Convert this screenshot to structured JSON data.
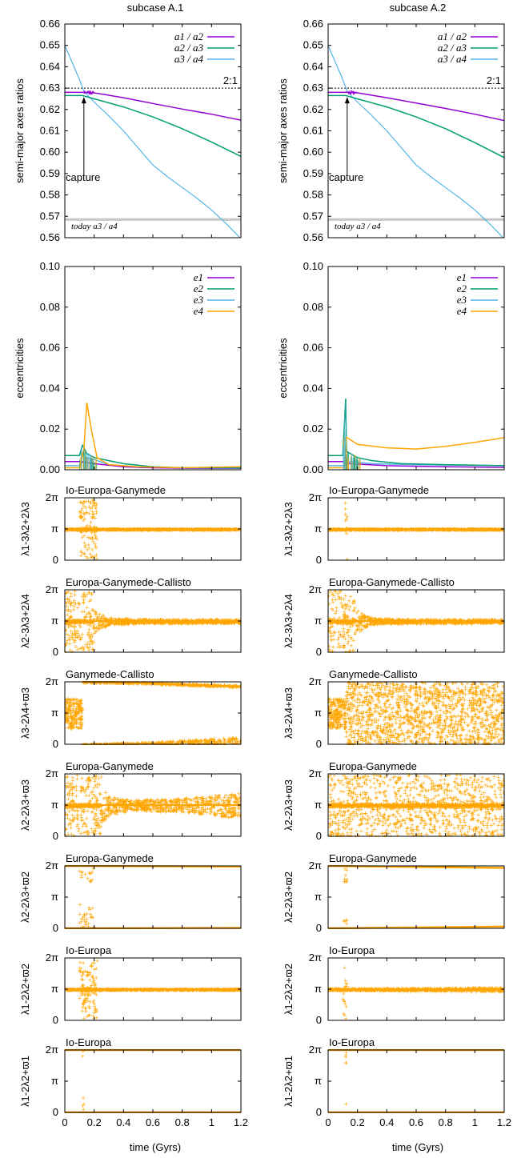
{
  "chart_data": {
    "type": "line",
    "columns": [
      "subcase A.1",
      "subcase A.2"
    ],
    "xlabel": "time (Gyrs)",
    "xlim": [
      0,
      1.2
    ],
    "xticks": [
      "0",
      "0.2",
      "0.4",
      "0.6",
      "0.8",
      "1",
      "1.2"
    ],
    "colors": {
      "purple": "#9400d3",
      "green": "#009e73",
      "blue": "#56b4e9",
      "orange": "#ffa500",
      "gray": "#c8c8c8"
    },
    "semimajor": {
      "ylabel": "semi-major axes ratios",
      "ylim": [
        0.56,
        0.66
      ],
      "yticks": [
        "0.56",
        "0.57",
        "0.58",
        "0.59",
        "0.60",
        "0.61",
        "0.62",
        "0.63",
        "0.64",
        "0.65",
        "0.66"
      ],
      "legend": [
        "a1 / a2",
        "a2 / a3",
        "a3 / a4"
      ],
      "resonance_label": "2:1",
      "resonance_value": 0.63,
      "capture_label": "capture",
      "today_label": "today a3 / a4",
      "today_value": 0.5685,
      "series": [
        {
          "a1_a2": [
            [
              0,
              0.628
            ],
            [
              0.12,
              0.628
            ],
            [
              0.2,
              0.6278
            ],
            [
              0.4,
              0.6255
            ],
            [
              0.6,
              0.6228
            ],
            [
              0.8,
              0.6202
            ],
            [
              1.0,
              0.6178
            ],
            [
              1.2,
              0.615
            ]
          ],
          "a2_a3": [
            [
              0,
              0.6265
            ],
            [
              0.12,
              0.6265
            ],
            [
              0.2,
              0.625
            ],
            [
              0.4,
              0.6212
            ],
            [
              0.6,
              0.6165
            ],
            [
              0.8,
              0.611
            ],
            [
              1.0,
              0.6048
            ],
            [
              1.2,
              0.598
            ]
          ],
          "a3_a4": [
            [
              0,
              0.65
            ],
            [
              0.05,
              0.642
            ],
            [
              0.1,
              0.634
            ],
            [
              0.13,
              0.6285
            ],
            [
              0.2,
              0.6235
            ],
            [
              0.3,
              0.617
            ],
            [
              0.4,
              0.61
            ],
            [
              0.5,
              0.602
            ],
            [
              0.6,
              0.594
            ],
            [
              0.7,
              0.5885
            ],
            [
              0.8,
              0.5835
            ],
            [
              0.9,
              0.5785
            ],
            [
              1.0,
              0.573
            ],
            [
              1.1,
              0.5665
            ],
            [
              1.2,
              0.5595
            ]
          ]
        },
        {
          "a1_a2": [
            [
              0,
              0.628
            ],
            [
              0.12,
              0.628
            ],
            [
              0.2,
              0.6278
            ],
            [
              0.4,
              0.6255
            ],
            [
              0.6,
              0.623
            ],
            [
              0.8,
              0.6205
            ],
            [
              1.0,
              0.6178
            ],
            [
              1.2,
              0.6148
            ]
          ],
          "a2_a3": [
            [
              0,
              0.6265
            ],
            [
              0.12,
              0.6265
            ],
            [
              0.2,
              0.625
            ],
            [
              0.4,
              0.6212
            ],
            [
              0.6,
              0.6165
            ],
            [
              0.8,
              0.611
            ],
            [
              1.0,
              0.6045
            ],
            [
              1.2,
              0.5975
            ]
          ],
          "a3_a4": [
            [
              0,
              0.65
            ],
            [
              0.05,
              0.642
            ],
            [
              0.1,
              0.634
            ],
            [
              0.13,
              0.6285
            ],
            [
              0.2,
              0.6235
            ],
            [
              0.3,
              0.617
            ],
            [
              0.4,
              0.61
            ],
            [
              0.5,
              0.602
            ],
            [
              0.6,
              0.594
            ],
            [
              0.7,
              0.5885
            ],
            [
              0.8,
              0.5835
            ],
            [
              0.9,
              0.5785
            ],
            [
              1.0,
              0.573
            ],
            [
              1.1,
              0.5665
            ],
            [
              1.2,
              0.5595
            ]
          ]
        }
      ]
    },
    "eccentricity": {
      "ylabel": "eccentricities",
      "ylim": [
        0,
        0.1
      ],
      "yticks": [
        "0.00",
        "0.02",
        "0.04",
        "0.06",
        "0.08",
        "0.10"
      ],
      "legend": [
        "e1",
        "e2",
        "e3",
        "e4"
      ],
      "series": [
        {
          "e1": [
            [
              0,
              0.004
            ],
            [
              0.1,
              0.004
            ],
            [
              0.2,
              0.003
            ],
            [
              0.4,
              0.0015
            ],
            [
              0.6,
              0.001
            ],
            [
              0.8,
              0.0008
            ],
            [
              1.0,
              0.0008
            ],
            [
              1.2,
              0.0008
            ]
          ],
          "e2": [
            [
              0,
              0.007
            ],
            [
              0.1,
              0.007
            ],
            [
              0.12,
              0.012
            ],
            [
              0.15,
              0.008
            ],
            [
              0.2,
              0.006
            ],
            [
              0.3,
              0.0045
            ],
            [
              0.4,
              0.003
            ],
            [
              0.6,
              0.0015
            ],
            [
              0.8,
              0.001
            ],
            [
              1.0,
              0.001
            ],
            [
              1.2,
              0.001
            ]
          ],
          "e3": [
            [
              0,
              0.002
            ],
            [
              0.1,
              0.002
            ],
            [
              0.15,
              0.006
            ],
            [
              0.2,
              0.005
            ],
            [
              0.3,
              0.0025
            ],
            [
              0.5,
              0.0012
            ],
            [
              0.8,
              0.0008
            ],
            [
              1.2,
              0.0008
            ]
          ],
          "e4": [
            [
              0,
              0.001
            ],
            [
              0.1,
              0.001
            ],
            [
              0.13,
              0.01
            ],
            [
              0.15,
              0.033
            ],
            [
              0.18,
              0.02
            ],
            [
              0.22,
              0.006
            ],
            [
              0.3,
              0.0025
            ],
            [
              0.5,
              0.0015
            ],
            [
              0.8,
              0.001
            ],
            [
              1.2,
              0.0015
            ]
          ]
        },
        {
          "e1": [
            [
              0,
              0.004
            ],
            [
              0.1,
              0.004
            ],
            [
              0.15,
              0.003
            ],
            [
              0.4,
              0.002
            ],
            [
              0.8,
              0.0015
            ],
            [
              1.2,
              0.0012
            ]
          ],
          "e2": [
            [
              0,
              0.007
            ],
            [
              0.1,
              0.007
            ],
            [
              0.12,
              0.035
            ],
            [
              0.125,
              0.009
            ],
            [
              0.2,
              0.006
            ],
            [
              0.3,
              0.0045
            ],
            [
              0.5,
              0.003
            ],
            [
              0.8,
              0.0025
            ],
            [
              1.2,
              0.002
            ]
          ],
          "e3": [
            [
              0,
              0.002
            ],
            [
              0.1,
              0.002
            ],
            [
              0.15,
              0.004
            ],
            [
              0.3,
              0.003
            ],
            [
              0.6,
              0.0025
            ],
            [
              1.2,
              0.002
            ]
          ],
          "e4": [
            [
              0,
              0.001
            ],
            [
              0.11,
              0.001
            ],
            [
              0.125,
              0.016
            ],
            [
              0.2,
              0.0125
            ],
            [
              0.4,
              0.0108
            ],
            [
              0.6,
              0.0102
            ],
            [
              0.8,
              0.0115
            ],
            [
              1.0,
              0.0135
            ],
            [
              1.2,
              0.0158
            ]
          ]
        }
      ]
    },
    "angles": {
      "ylim": [
        0,
        6.2832
      ],
      "yticks": [
        "0",
        "π",
        "2π"
      ],
      "panels": [
        {
          "title": "Io-Europa-Ganymede",
          "ylabel": "λ1-3λ2+2λ3",
          "series": [
            {
              "band_center": 3.14159,
              "band_half_width": [
                [
                  0,
                  0.05
                ],
                [
                  1.2,
                  0.05
                ]
              ],
              "chaos_start": 0.1,
              "chaos_end": 0.22,
              "chaos_density": 1.0
            },
            {
              "band_center": 3.14159,
              "band_half_width": [
                [
                  0,
                  0.05
                ],
                [
                  1.2,
                  0.05
                ]
              ],
              "chaos_start": 0.11,
              "chaos_end": 0.13,
              "chaos_density": 0.35
            }
          ]
        },
        {
          "title": "Europa-Ganymede-Callisto",
          "ylabel": "λ2-3λ3+2λ4",
          "series": [
            {
              "band_center": 3.14159,
              "band_half_width": [
                [
                  0,
                  3.14
                ],
                [
                  0.15,
                  3.14
                ],
                [
                  0.2,
                  1.2
                ],
                [
                  0.3,
                  0.35
                ],
                [
                  0.5,
                  0.22
                ],
                [
                  1.2,
                  0.18
                ]
              ],
              "chaos_start": 0,
              "chaos_end": 0.2,
              "chaos_density": 1.0
            },
            {
              "band_center": 3.14159,
              "band_half_width": [
                [
                  0,
                  3.14
                ],
                [
                  0.15,
                  3.14
                ],
                [
                  0.2,
                  1.2
                ],
                [
                  0.3,
                  0.35
                ],
                [
                  0.5,
                  0.22
                ],
                [
                  1.2,
                  0.18
                ]
              ],
              "chaos_start": 0,
              "chaos_end": 0.18,
              "chaos_density": 1.0
            }
          ]
        },
        {
          "title": "Ganymede-Callisto",
          "ylabel": "λ3-2λ4+ϖ3",
          "series": [
            {
              "mode": "split",
              "pre": [
                0,
                0.12
              ],
              "upper": [
                [
                  0.12,
                  6.28
                ],
                [
                  0.5,
                  6.18
                ],
                [
                  1.2,
                  5.8
                ]
              ],
              "lower": [
                [
                  0.12,
                  0.0
                ],
                [
                  0.5,
                  0.18
                ],
                [
                  1.2,
                  0.75
                ]
              ]
            },
            {
              "mode": "fill",
              "pre": [
                0,
                0.12
              ]
            }
          ]
        },
        {
          "title": "Europa-Ganymede",
          "ylabel": "λ2-2λ3+ϖ3",
          "series": [
            {
              "band_center": 3.14159,
              "band_half_width": [
                [
                  0,
                  3.14
                ],
                [
                  0.2,
                  3.14
                ],
                [
                  0.3,
                  1.0
                ],
                [
                  0.45,
                  0.55
                ],
                [
                  0.8,
                  0.7
                ],
                [
                  1.2,
                  1.3
                ]
              ],
              "chaos_start": 0,
              "chaos_end": 0.25,
              "chaos_density": 1.0
            },
            {
              "band_center": 3.14159,
              "band_half_width": [
                [
                  0,
                  3.14
                ],
                [
                  1.2,
                  3.14
                ]
              ],
              "chaos_start": 0,
              "chaos_end": 1.2,
              "chaos_density": 1.0
            }
          ]
        },
        {
          "title": "Europa-Ganymede",
          "ylabel": "λ2-2λ3+ϖ2",
          "series": [
            {
              "mode": "edges",
              "chaos_start": 0.1,
              "chaos_end": 0.2,
              "top_drift": [
                [
                  0,
                  6.28
                ],
                [
                  1.2,
                  6.22
                ]
              ],
              "bottom_drift": [
                [
                  0,
                  0.0
                ],
                [
                  1.2,
                  0.04
                ]
              ]
            },
            {
              "mode": "edges",
              "chaos_start": 0.1,
              "chaos_end": 0.13,
              "top_drift": [
                [
                  0,
                  6.28
                ],
                [
                  1.2,
                  6.08
                ]
              ],
              "bottom_drift": [
                [
                  0,
                  0.0
                ],
                [
                  1.2,
                  0.18
                ]
              ]
            }
          ]
        },
        {
          "title": "Io-Europa",
          "ylabel": "λ1-2λ2+ϖ2",
          "series": [
            {
              "band_center": 3.14159,
              "band_half_width": [
                [
                  0,
                  0.06
                ],
                [
                  1.2,
                  0.06
                ]
              ],
              "chaos_start": 0.1,
              "chaos_end": 0.22,
              "chaos_density": 1.0
            },
            {
              "band_center": 3.14159,
              "band_half_width": [
                [
                  0,
                  0.08
                ],
                [
                  0.5,
                  0.12
                ],
                [
                  1.2,
                  0.18
                ]
              ],
              "chaos_start": 0.1,
              "chaos_end": 0.13,
              "chaos_density": 0.5
            }
          ]
        },
        {
          "title": "Io-Europa",
          "ylabel": "λ1-2λ2+ϖ1",
          "series": [
            {
              "mode": "edges",
              "chaos_start": 0.12,
              "chaos_end": 0.13,
              "top_drift": [
                [
                  0,
                  6.28
                ],
                [
                  1.2,
                  6.28
                ]
              ],
              "bottom_drift": [
                [
                  0,
                  0.0
                ],
                [
                  1.2,
                  0.0
                ]
              ]
            },
            {
              "mode": "edges",
              "chaos_start": 0.12,
              "chaos_end": 0.125,
              "top_drift": [
                [
                  0,
                  6.28
                ],
                [
                  1.2,
                  6.28
                ]
              ],
              "bottom_drift": [
                [
                  0,
                  0.0
                ],
                [
                  1.2,
                  0.0
                ]
              ]
            }
          ]
        }
      ]
    }
  }
}
